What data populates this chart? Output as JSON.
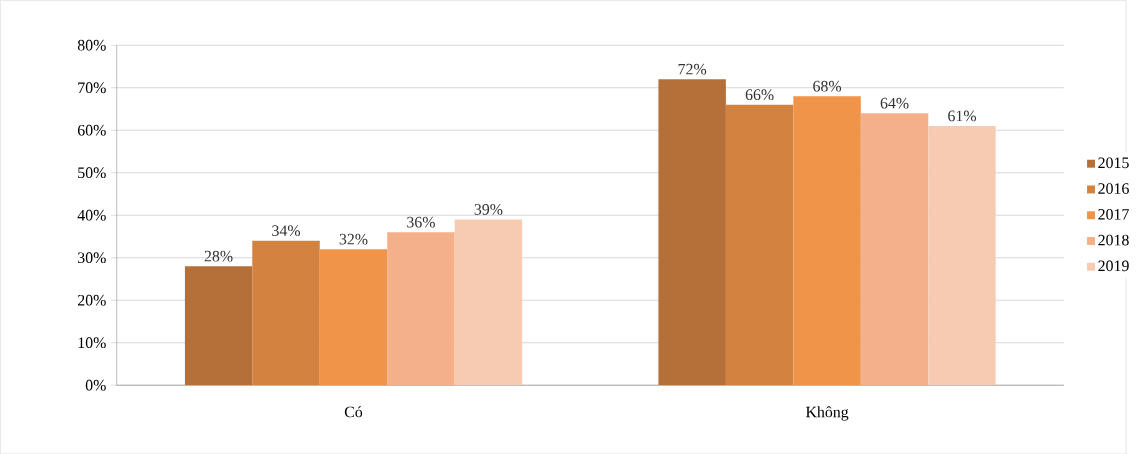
{
  "chart_data": {
    "type": "bar",
    "categories": [
      "Có",
      "Không"
    ],
    "series": [
      {
        "name": "2015",
        "color": "#b5703a",
        "values": [
          28,
          72
        ],
        "value_labels": [
          "28%",
          "72%"
        ]
      },
      {
        "name": "2016",
        "color": "#d4823f",
        "values": [
          34,
          66
        ],
        "value_labels": [
          "34%",
          "66%"
        ]
      },
      {
        "name": "2017",
        "color": "#f0944a",
        "values": [
          32,
          68
        ],
        "value_labels": [
          "32%",
          "68%"
        ]
      },
      {
        "name": "2018",
        "color": "#f4b08a",
        "values": [
          36,
          64
        ],
        "value_labels": [
          "36%",
          "64%"
        ]
      },
      {
        "name": "2019",
        "color": "#f7cbb2",
        "values": [
          39,
          61
        ],
        "value_labels": [
          "39%",
          "61%"
        ]
      }
    ],
    "ylim": [
      0,
      80
    ],
    "yticks": [
      {
        "value": 0,
        "label": "0%"
      },
      {
        "value": 10,
        "label": "10%"
      },
      {
        "value": 20,
        "label": "20%"
      },
      {
        "value": 30,
        "label": "30%"
      },
      {
        "value": 40,
        "label": "40%"
      },
      {
        "value": 50,
        "label": "50%"
      },
      {
        "value": 60,
        "label": "60%"
      },
      {
        "value": 70,
        "label": "70%"
      },
      {
        "value": 80,
        "label": "80%"
      }
    ],
    "grid": "y",
    "legend": "right"
  }
}
